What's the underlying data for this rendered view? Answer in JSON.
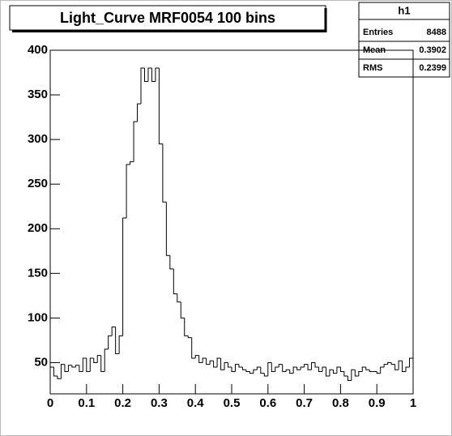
{
  "chart_data": {
    "type": "histogram",
    "title": "Light_Curve MRF0054 100 bins",
    "bins": [
      0,
      0.01,
      0.02,
      0.03,
      0.04,
      0.05,
      0.06,
      0.07,
      0.08,
      0.09,
      0.1,
      0.11,
      0.12,
      0.13,
      0.14,
      0.15,
      0.16,
      0.17,
      0.18,
      0.19,
      0.2,
      0.21,
      0.22,
      0.23,
      0.24,
      0.25,
      0.26,
      0.27,
      0.28,
      0.29,
      0.3,
      0.31,
      0.32,
      0.33,
      0.34,
      0.35,
      0.36,
      0.37,
      0.38,
      0.39,
      0.4,
      0.41,
      0.42,
      0.43,
      0.44,
      0.45,
      0.46,
      0.47,
      0.48,
      0.49,
      0.5,
      0.51,
      0.52,
      0.53,
      0.54,
      0.55,
      0.56,
      0.57,
      0.58,
      0.59,
      0.6,
      0.61,
      0.62,
      0.63,
      0.64,
      0.65,
      0.66,
      0.67,
      0.68,
      0.69,
      0.7,
      0.71,
      0.72,
      0.73,
      0.74,
      0.75,
      0.76,
      0.77,
      0.78,
      0.79,
      0.8,
      0.81,
      0.82,
      0.83,
      0.84,
      0.85,
      0.86,
      0.87,
      0.88,
      0.89,
      0.9,
      0.91,
      0.92,
      0.93,
      0.94,
      0.95,
      0.96,
      0.97,
      0.98,
      0.99,
      1
    ],
    "values": [
      45,
      35,
      32,
      48,
      40,
      47,
      45,
      47,
      40,
      55,
      40,
      55,
      50,
      58,
      40,
      65,
      80,
      90,
      60,
      80,
      212,
      272,
      275,
      320,
      340,
      380,
      365,
      380,
      365,
      380,
      295,
      230,
      170,
      155,
      127,
      118,
      100,
      80,
      78,
      55,
      58,
      50,
      55,
      48,
      52,
      45,
      55,
      42,
      50,
      45,
      40,
      48,
      45,
      42,
      40,
      38,
      42,
      45,
      38,
      35,
      50,
      40,
      45,
      48,
      40,
      42,
      38,
      45,
      42,
      45,
      48,
      42,
      50,
      45,
      40,
      45,
      35,
      42,
      38,
      45,
      40,
      35,
      30,
      42,
      35,
      40,
      45,
      42,
      40,
      40,
      38,
      45,
      48,
      50,
      48,
      42,
      52,
      40,
      45,
      55
    ],
    "color": "#000000",
    "xlim": [
      0,
      1
    ],
    "xticks": [
      0,
      0.1,
      0.2,
      0.3,
      0.4,
      0.5,
      0.6,
      0.7,
      0.8,
      0.9,
      1
    ],
    "ylim": [
      15,
      400
    ],
    "yticks": [
      50,
      100,
      150,
      200,
      250,
      300,
      350,
      400
    ],
    "stats": {
      "title": "h1",
      "rows": [
        [
          "Entries",
          "8488"
        ],
        [
          "Mean",
          "0.3902"
        ],
        [
          "RMS",
          "0.2399"
        ]
      ]
    }
  }
}
